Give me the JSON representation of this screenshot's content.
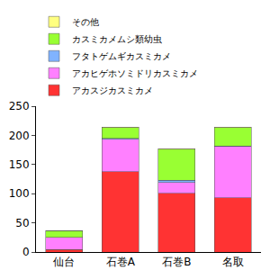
{
  "chart_data": {
    "type": "bar",
    "stacked": true,
    "legend": "top left",
    "grid": false,
    "categories": [
      "仙台",
      "石巻A",
      "石巻B",
      "名取"
    ],
    "series": [
      {
        "name": "アカスジカスミカメ",
        "color": "#ff3333",
        "values": [
          4,
          138,
          101,
          93
        ]
      },
      {
        "name": "アカヒゲホソミドリカスミカメ",
        "color": "#ff80ff",
        "values": [
          21,
          55,
          18,
          88
        ]
      },
      {
        "name": "フタトゲムギカスミカメ",
        "color": "#80b3ff",
        "values": [
          0,
          2,
          4,
          1
        ]
      },
      {
        "name": "カスミカメムシ類幼虫",
        "color": "#99ff33",
        "values": [
          12,
          18,
          53,
          31
        ]
      },
      {
        "name": "その他",
        "color": "#ffff80",
        "values": [
          0,
          1,
          1,
          1
        ]
      }
    ],
    "ylim": [
      0,
      250
    ],
    "yticks": [
      0,
      50,
      100,
      150,
      200,
      250
    ]
  }
}
